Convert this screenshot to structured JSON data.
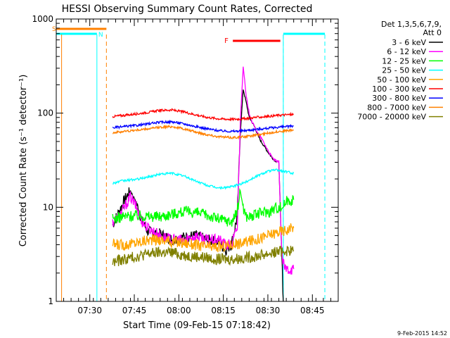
{
  "chart_data": {
    "type": "line",
    "title": "HESSI Observing Summary Count Rates, Corrected",
    "xlabel": "Start Time (09-Feb-15 07:18:42)",
    "ylabel": "Corrected Count Rate (s⁻¹ detector⁻¹)",
    "yscale": "log",
    "ylim": [
      1,
      1000
    ],
    "xlim_minutes_after_start": [
      0,
      95
    ],
    "x_ticks": [
      {
        "label": "07:30",
        "minutes": 11.3
      },
      {
        "label": "07:45",
        "minutes": 26.3
      },
      {
        "label": "08:00",
        "minutes": 41.3
      },
      {
        "label": "08:15",
        "minutes": 56.3
      },
      {
        "label": "08:30",
        "minutes": 71.3
      },
      {
        "label": "08:45",
        "minutes": 86.3
      }
    ],
    "y_ticks": [
      "1",
      "10",
      "100",
      "1000"
    ],
    "legend_header": [
      "Det 1,3,5,6,7,9,",
      "Att 0"
    ],
    "legend_placement": "top-right",
    "flags": {
      "saa": {
        "label": "S",
        "color": "#ff8000",
        "start": 0,
        "end": 16.9
      },
      "night": {
        "label": "N",
        "color": "#00ffff",
        "start": 0,
        "end": 13.7
      },
      "flare": {
        "label": "F",
        "color": "#ff0000",
        "start": 59.5,
        "end": 75.5
      }
    },
    "data_gaps": [
      {
        "color": "#ff8000",
        "start": 1.8,
        "end": 16.9
      },
      {
        "color": "#00ffff",
        "start": 13.7,
        "end": 76.5
      },
      {
        "color": "#00ffff",
        "start": 76.5,
        "end": 90.5
      }
    ],
    "series": [
      {
        "name": "3 - 6 keV",
        "color": "#000000",
        "x": [
          19,
          23,
          25,
          27,
          29,
          31,
          35,
          39,
          43,
          47,
          51,
          55,
          57,
          59,
          61,
          62,
          63,
          64,
          65,
          66,
          67,
          68,
          69,
          70,
          71,
          72,
          73,
          74,
          75,
          76,
          76.5
        ],
        "y": [
          6.5,
          12,
          15,
          11,
          7,
          5.5,
          5.2,
          4.5,
          4.8,
          5,
          4.5,
          4.2,
          3.5,
          4,
          8,
          60,
          180,
          130,
          90,
          80,
          70,
          58,
          50,
          45,
          40,
          36,
          33,
          31,
          30,
          3,
          1
        ]
      },
      {
        "name": "6 - 12 keV",
        "color": "#ff00ff",
        "x": [
          19,
          21,
          23,
          25,
          27,
          29,
          31,
          35,
          39,
          43,
          47,
          51,
          55,
          57,
          59,
          61,
          62,
          63,
          64,
          65,
          66,
          67,
          68,
          69,
          70,
          71,
          72,
          73,
          74,
          75,
          76,
          77,
          80
        ],
        "y": [
          7,
          8,
          10,
          13,
          10,
          7,
          6,
          5,
          4.5,
          4.5,
          5,
          4.5,
          4.5,
          4,
          4,
          6,
          80,
          320,
          150,
          100,
          80,
          70,
          60,
          55,
          48,
          42,
          37,
          33,
          31,
          30,
          3,
          2.2,
          2.2
        ]
      },
      {
        "name": "12 - 25 keV",
        "color": "#00ff00",
        "x": [
          19,
          23,
          27,
          31,
          35,
          39,
          43,
          47,
          51,
          55,
          59,
          61,
          62,
          63,
          64,
          66,
          68,
          70,
          72,
          74,
          76,
          78,
          80
        ],
        "y": [
          7.5,
          8,
          8.2,
          8,
          8,
          8.5,
          9,
          8.8,
          8.2,
          7.5,
          7,
          9,
          15,
          10,
          8,
          8,
          8.5,
          9,
          9,
          10,
          10,
          12,
          12
        ]
      },
      {
        "name": "25 - 50 keV",
        "color": "#00ffff",
        "x": [
          19,
          22,
          25,
          28,
          31,
          35,
          39,
          43,
          47,
          51,
          55,
          59,
          63,
          67,
          71,
          74,
          77,
          80
        ],
        "y": [
          18,
          19,
          19.5,
          20,
          21,
          22.5,
          23,
          21.5,
          19,
          17,
          16,
          16.5,
          18,
          21,
          24,
          25,
          24,
          23
        ]
      },
      {
        "name": "50 - 100 keV",
        "color": "#ffa500",
        "x": [
          19,
          23,
          27,
          31,
          35,
          39,
          43,
          47,
          51,
          55,
          59,
          63,
          67,
          71,
          75,
          80
        ],
        "y": [
          4,
          4,
          4.2,
          4.5,
          4.5,
          4.3,
          4.2,
          4,
          3.8,
          3.8,
          4,
          4.2,
          4.5,
          5,
          5.5,
          6
        ]
      },
      {
        "name": "100 - 300 keV",
        "color": "#ff0000",
        "x": [
          19,
          23,
          27,
          31,
          35,
          39,
          43,
          47,
          51,
          55,
          59,
          63,
          67,
          71,
          75,
          80
        ],
        "y": [
          92,
          95,
          98,
          102,
          107,
          108,
          103,
          96,
          90,
          87,
          86,
          87,
          90,
          92,
          95,
          97
        ]
      },
      {
        "name": "300 - 800 keV",
        "color": "#0000ff",
        "x": [
          19,
          23,
          27,
          31,
          35,
          39,
          43,
          47,
          51,
          55,
          59,
          63,
          67,
          71,
          75,
          80
        ],
        "y": [
          70,
          72,
          74,
          77,
          80,
          81,
          77,
          72,
          68,
          65,
          64,
          65,
          67,
          69,
          71,
          73
        ]
      },
      {
        "name": "800 - 7000 keV",
        "color": "#ff8000",
        "x": [
          19,
          23,
          27,
          31,
          35,
          39,
          43,
          47,
          51,
          55,
          59,
          63,
          67,
          71,
          75,
          80
        ],
        "y": [
          62,
          64,
          66,
          68,
          71,
          72,
          68,
          63,
          59,
          56,
          55,
          56,
          58,
          61,
          64,
          66
        ]
      },
      {
        "name": "7000 - 20000 keV",
        "color": "#808000",
        "x": [
          19,
          23,
          27,
          31,
          35,
          39,
          43,
          47,
          51,
          55,
          59,
          63,
          67,
          71,
          75,
          80
        ],
        "y": [
          2.6,
          2.8,
          3,
          3.2,
          3.3,
          3.3,
          3.1,
          3,
          2.9,
          2.8,
          2.8,
          2.9,
          3,
          3.2,
          3.4,
          3.5
        ]
      }
    ]
  },
  "footer": {
    "timestamp": "9-Feb-2015 14:52"
  }
}
